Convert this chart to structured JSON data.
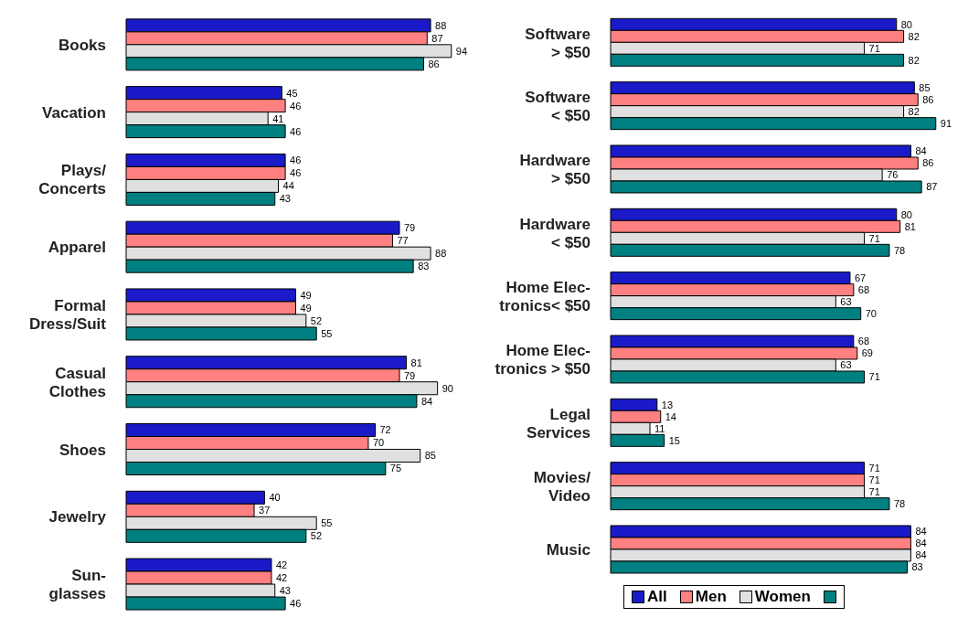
{
  "chart_data": [
    {
      "type": "bar",
      "orientation": "horizontal",
      "data_labels": true,
      "categories": [
        "Books",
        "Vacation",
        "Plays/\nConcerts",
        "Apparel",
        "Formal\nDress/Suit",
        "Casual\nClothes",
        "Shoes",
        "Jewelry",
        "Sun-\nglasses"
      ],
      "series": [
        {
          "color": "#1a1ac8",
          "values": [
            88,
            45,
            46,
            79,
            49,
            81,
            72,
            40,
            42
          ]
        },
        {
          "color": "#ff8080",
          "values": [
            87,
            46,
            46,
            77,
            49,
            79,
            70,
            37,
            42
          ]
        },
        {
          "color": "#e0e0e0",
          "values": [
            94,
            41,
            44,
            88,
            52,
            90,
            85,
            55,
            43
          ]
        },
        {
          "color": "#008080",
          "values": [
            86,
            46,
            43,
            83,
            55,
            84,
            75,
            52,
            46
          ]
        }
      ]
    },
    {
      "type": "bar",
      "orientation": "horizontal",
      "data_labels": true,
      "legend": "bottom",
      "categories": [
        "Software\n> $50",
        "Software\n< $50",
        "Hardware\n> $50",
        "Hardware\n< $50",
        "Home Elec-\ntronics< $50",
        "Home Elec-\ntronics > $50",
        "Legal\nServices",
        "Movies/\nVideo",
        "Music"
      ],
      "series": [
        {
          "name": "All",
          "color": "#1a1ac8",
          "values": [
            80,
            85,
            84,
            80,
            67,
            68,
            13,
            71,
            84
          ]
        },
        {
          "name": "Men",
          "color": "#ff8080",
          "values": [
            82,
            86,
            86,
            81,
            68,
            69,
            14,
            71,
            84
          ]
        },
        {
          "name": "Women",
          "color": "#e0e0e0",
          "values": [
            71,
            82,
            76,
            71,
            63,
            63,
            11,
            71,
            84
          ]
        },
        {
          "color": "#008080",
          "values": [
            82,
            91,
            87,
            78,
            70,
            71,
            15,
            78,
            83
          ]
        }
      ]
    }
  ]
}
